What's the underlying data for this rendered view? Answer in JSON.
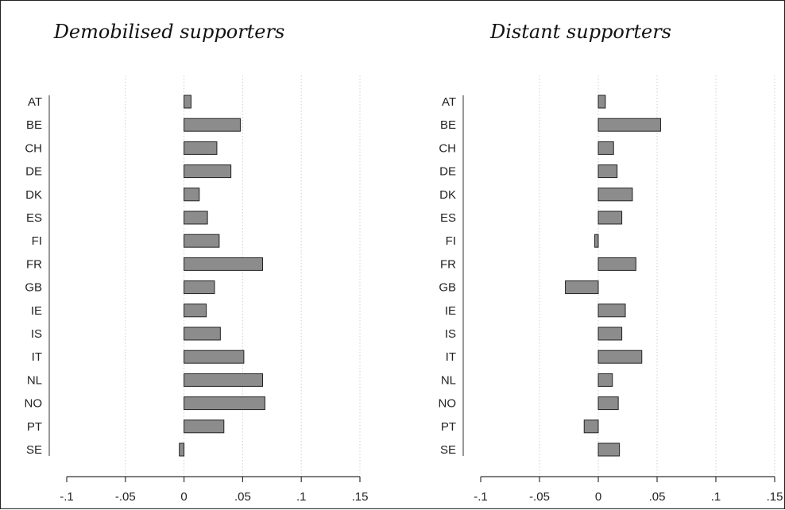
{
  "chart_data": [
    {
      "type": "bar",
      "orientation": "horizontal",
      "title": "Demobilised supporters",
      "categories": [
        "AT",
        "BE",
        "CH",
        "DE",
        "DK",
        "ES",
        "FI",
        "FR",
        "GB",
        "IE",
        "IS",
        "IT",
        "NL",
        "NO",
        "PT",
        "SE"
      ],
      "values": [
        0.006,
        0.048,
        0.028,
        0.04,
        0.013,
        0.02,
        0.03,
        0.067,
        0.026,
        0.019,
        0.031,
        0.051,
        0.067,
        0.069,
        0.034,
        -0.004
      ],
      "xlim": [
        -0.1,
        0.15
      ],
      "xticks": [
        -0.1,
        -0.05,
        0,
        0.05,
        0.1,
        0.15
      ],
      "xtick_labels": [
        "-.1",
        "-.05",
        "0",
        ".05",
        ".1",
        ".15"
      ],
      "grid": true,
      "bar_color": "#8c8c8c"
    },
    {
      "type": "bar",
      "orientation": "horizontal",
      "title": "Distant supporters",
      "categories": [
        "AT",
        "BE",
        "CH",
        "DE",
        "DK",
        "ES",
        "FI",
        "FR",
        "GB",
        "IE",
        "IS",
        "IT",
        "NL",
        "NO",
        "PT",
        "SE"
      ],
      "values": [
        0.006,
        0.053,
        0.013,
        0.016,
        0.029,
        0.02,
        -0.003,
        0.032,
        -0.028,
        0.023,
        0.02,
        0.037,
        0.012,
        0.017,
        -0.012,
        0.018
      ],
      "xlim": [
        -0.1,
        0.15
      ],
      "xticks": [
        -0.1,
        -0.05,
        0,
        0.05,
        0.1,
        0.15
      ],
      "xtick_labels": [
        "-.1",
        "-.05",
        "0",
        ".05",
        ".1",
        ".15"
      ],
      "grid": true,
      "bar_color": "#8c8c8c"
    }
  ]
}
